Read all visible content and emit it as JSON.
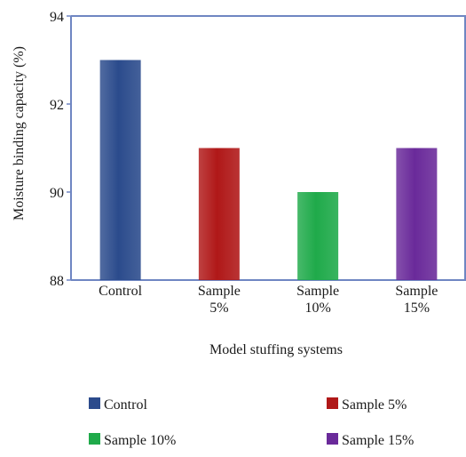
{
  "chart_data": {
    "type": "bar",
    "xlabel": "Model stuffing systems",
    "ylabel": "Moisture binding capacity (%)",
    "ylim": [
      88,
      94
    ],
    "yticks": [
      88,
      90,
      92,
      94
    ],
    "categories": [
      {
        "lines": [
          "Control"
        ],
        "name": "Control",
        "value": 93,
        "color": "#2b4b8c"
      },
      {
        "lines": [
          "Sample",
          "5%"
        ],
        "name": "Sample 5%",
        "value": 91,
        "color": "#b01818"
      },
      {
        "lines": [
          "Sample",
          "10%"
        ],
        "name": "Sample 10%",
        "value": 90,
        "color": "#1faa4a"
      },
      {
        "lines": [
          "Sample",
          "15%"
        ],
        "name": "Sample 15%",
        "value": 91,
        "color": "#6a2a9a"
      }
    ],
    "legend": [
      {
        "label": "Control",
        "color": "#2b4b8c"
      },
      {
        "label": "Sample 5%",
        "color": "#b01818"
      },
      {
        "label": "Sample 10%",
        "color": "#1faa4a"
      },
      {
        "label": "Sample 15%",
        "color": "#6a2a9a"
      }
    ],
    "grid": false,
    "legend_position": "bottom",
    "axis_color": "#6f86c2"
  }
}
